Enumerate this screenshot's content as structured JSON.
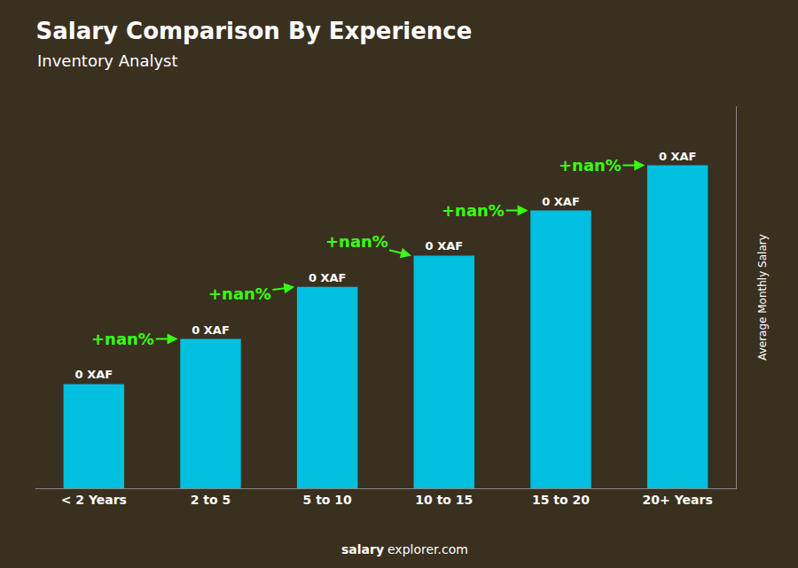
{
  "chart_data": {
    "type": "bar",
    "title": "Salary Comparison By Experience",
    "subtitle": "Inventory Analyst",
    "ylabel": "Average Monthly Salary",
    "categories": [
      "< 2 Years",
      "2 to 5",
      "5 to 10",
      "10 to 15",
      "15 to 20",
      "20+ Years"
    ],
    "values": [
      0.3,
      0.43,
      0.58,
      0.67,
      0.8,
      0.93
    ],
    "value_labels": [
      "0 XAF",
      "0 XAF",
      "0 XAF",
      "0 XAF",
      "0 XAF",
      "0 XAF"
    ],
    "data_labels": true,
    "color": "#00BFDF",
    "ylim": [
      0,
      1.1
    ],
    "tick_labels": "x",
    "grid": false,
    "annotations": [
      {
        "text": "+nan%",
        "color": "#39FF14"
      },
      {
        "text": "+nan%",
        "color": "#39FF14"
      },
      {
        "text": "+nan%",
        "color": "#39FF14"
      },
      {
        "text": "+nan%",
        "color": "#39FF14"
      },
      {
        "text": "+nan%",
        "color": "#39FF14"
      }
    ],
    "watermark": [
      "salary",
      "explorer.com"
    ]
  }
}
